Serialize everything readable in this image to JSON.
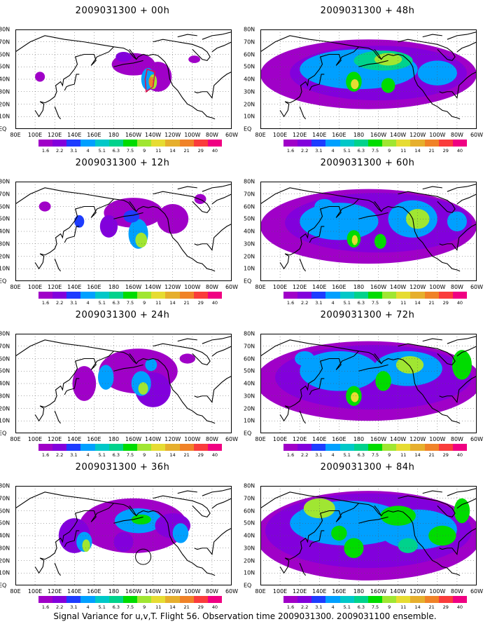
{
  "caption": "Signal Variance for u,v,T. Flight 56. Observation time 2009031300. 2009031100 ensemble.",
  "colors": [
    "#a000c8",
    "#8200dc",
    "#1e3cff",
    "#00a0ff",
    "#00c8c8",
    "#00d28c",
    "#00dc00",
    "#a0e632",
    "#e6dc32",
    "#e6af2d",
    "#f08228",
    "#fa3c3c",
    "#f00082"
  ],
  "colorbar_labels": [
    "1.6",
    "2.2",
    "3.1",
    "4",
    "5.1",
    "6.3",
    "7.5",
    "9",
    "11",
    "14",
    "21",
    "29",
    "40"
  ],
  "x_tick_labels": [
    "80E",
    "100E",
    "120E",
    "140E",
    "160E",
    "180",
    "160W",
    "140W",
    "120W",
    "100W",
    "80W",
    "60W"
  ],
  "y_tick_labels": [
    "80N",
    "70N",
    "60N",
    "50N",
    "40N",
    "30N",
    "20N",
    "10N",
    "EQ"
  ],
  "chart_data": [
    {
      "type": "heatmap",
      "title": "2009031300 + 00h",
      "lead_hours": 0,
      "region": "80E-60W, EQ-80N",
      "levels": [
        1.6,
        2.2,
        3.1,
        4,
        5.1,
        6.3,
        7.5,
        9,
        11,
        14,
        21,
        29,
        40
      ],
      "peak_level": 21
    },
    {
      "type": "heatmap",
      "title": "2009031300 + 12h",
      "lead_hours": 12,
      "region": "80E-60W, EQ-80N",
      "levels": [
        1.6,
        2.2,
        3.1,
        4,
        5.1,
        6.3,
        7.5,
        9,
        11,
        14,
        21,
        29,
        40
      ],
      "peak_level": 11
    },
    {
      "type": "heatmap",
      "title": "2009031300 + 24h",
      "lead_hours": 24,
      "region": "80E-60W, EQ-80N",
      "levels": [
        1.6,
        2.2,
        3.1,
        4,
        5.1,
        6.3,
        7.5,
        9,
        11,
        14,
        21,
        29,
        40
      ],
      "peak_level": 11
    },
    {
      "type": "heatmap",
      "title": "2009031300 + 36h",
      "lead_hours": 36,
      "region": "80E-60W, EQ-80N",
      "levels": [
        1.6,
        2.2,
        3.1,
        4,
        5.1,
        6.3,
        7.5,
        9,
        11,
        14,
        21,
        29,
        40
      ],
      "peak_level": 11
    },
    {
      "type": "heatmap",
      "title": "2009031300 + 48h",
      "lead_hours": 48,
      "region": "80E-60W, EQ-80N",
      "levels": [
        1.6,
        2.2,
        3.1,
        4,
        5.1,
        6.3,
        7.5,
        9,
        11,
        14,
        21,
        29,
        40
      ],
      "peak_level": 11
    },
    {
      "type": "heatmap",
      "title": "2009031300 + 60h",
      "lead_hours": 60,
      "region": "80E-60W, EQ-80N",
      "levels": [
        1.6,
        2.2,
        3.1,
        4,
        5.1,
        6.3,
        7.5,
        9,
        11,
        14,
        21,
        29,
        40
      ],
      "peak_level": 11
    },
    {
      "type": "heatmap",
      "title": "2009031300 + 72h",
      "lead_hours": 72,
      "region": "80E-60W, EQ-80N",
      "levels": [
        1.6,
        2.2,
        3.1,
        4,
        5.1,
        6.3,
        7.5,
        9,
        11,
        14,
        21,
        29,
        40
      ],
      "peak_level": 11
    },
    {
      "type": "heatmap",
      "title": "2009031300 + 84h",
      "lead_hours": 84,
      "region": "80E-60W, EQ-80N",
      "levels": [
        1.6,
        2.2,
        3.1,
        4,
        5.1,
        6.3,
        7.5,
        9,
        11,
        14,
        21,
        29,
        40
      ],
      "peak_level": 11
    }
  ]
}
